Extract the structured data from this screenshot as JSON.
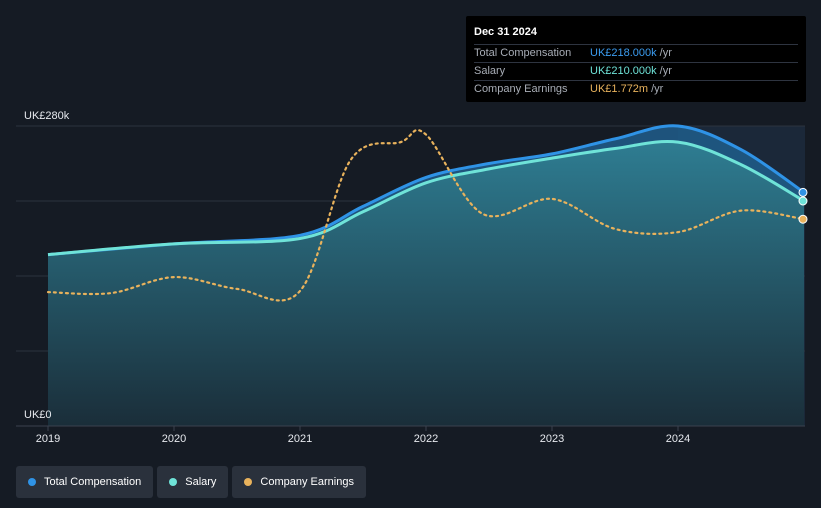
{
  "tooltip": {
    "date": "Dec 31 2024",
    "rows": [
      {
        "label": "Total Compensation",
        "value": "UK£218.000k",
        "unit": "/yr",
        "color": "#3b9cf0"
      },
      {
        "label": "Salary",
        "value": "UK£210.000k",
        "unit": "/yr",
        "color": "#6fe3d8"
      },
      {
        "label": "Company Earnings",
        "value": "UK£1.772m",
        "unit": "/yr",
        "color": "#e8b25c"
      }
    ]
  },
  "legend": [
    {
      "label": "Total Compensation",
      "color": "#2f93e6"
    },
    {
      "label": "Salary",
      "color": "#6fe3d8"
    },
    {
      "label": "Company Earnings",
      "color": "#e8b25c"
    }
  ],
  "chart_data": {
    "type": "line",
    "y_top_label": "UK£280k",
    "y_bottom_label": "UK£0",
    "ylim": [
      0,
      280
    ],
    "xlim": [
      2019,
      2025
    ],
    "x_ticks": [
      "2019",
      "2020",
      "2021",
      "2022",
      "2023",
      "2024"
    ],
    "grid": true,
    "series": [
      {
        "name": "Total Compensation",
        "color": "#2f93e6",
        "points": [
          [
            2019,
            160
          ],
          [
            2020,
            170
          ],
          [
            2021,
            178
          ],
          [
            2021.5,
            205
          ],
          [
            2022,
            232
          ],
          [
            2022.5,
            245
          ],
          [
            2023,
            254
          ],
          [
            2023.5,
            268
          ],
          [
            2024,
            280
          ],
          [
            2024.5,
            258
          ],
          [
            2025,
            218
          ]
        ]
      },
      {
        "name": "Salary",
        "color": "#6fe3d8",
        "points": [
          [
            2019,
            160
          ],
          [
            2020,
            170
          ],
          [
            2021,
            175
          ],
          [
            2021.5,
            200
          ],
          [
            2022,
            227
          ],
          [
            2022.5,
            240
          ],
          [
            2023,
            250
          ],
          [
            2023.5,
            259
          ],
          [
            2024,
            265
          ],
          [
            2024.5,
            244
          ],
          [
            2025,
            210
          ]
        ]
      },
      {
        "name": "Company Earnings",
        "color": "#e8b25c",
        "dashed": true,
        "points": [
          [
            2019,
            125
          ],
          [
            2019.5,
            124
          ],
          [
            2020,
            139
          ],
          [
            2020.5,
            128
          ],
          [
            2021,
            126
          ],
          [
            2021.4,
            248
          ],
          [
            2021.8,
            265
          ],
          [
            2022,
            272
          ],
          [
            2022.45,
            198
          ],
          [
            2023,
            212
          ],
          [
            2023.5,
            184
          ],
          [
            2024,
            181
          ],
          [
            2024.5,
            201
          ],
          [
            2025,
            193
          ]
        ]
      }
    ],
    "end_markers": [
      {
        "series": "Total Compensation",
        "x": 2025,
        "y": 218
      },
      {
        "series": "Salary",
        "x": 2025,
        "y": 210
      },
      {
        "series": "Company Earnings",
        "x": 2025,
        "y": 193
      }
    ]
  }
}
